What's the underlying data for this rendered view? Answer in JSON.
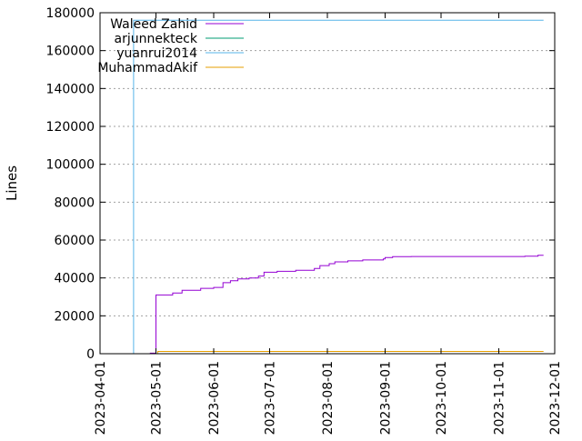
{
  "chart_data": {
    "type": "line",
    "title": "",
    "xlabel": "",
    "ylabel": "Lines",
    "xlim": [
      "2023-04-01",
      "2023-12-01"
    ],
    "ylim": [
      0,
      180000
    ],
    "y_ticks": [
      0,
      20000,
      40000,
      60000,
      80000,
      100000,
      120000,
      140000,
      160000,
      180000
    ],
    "x_ticks": [
      "2023-04-01",
      "2023-05-01",
      "2023-06-01",
      "2023-07-01",
      "2023-08-01",
      "2023-09-01",
      "2023-10-01",
      "2023-11-01",
      "2023-12-01"
    ],
    "grid": "horizontal dashed",
    "legend_position": "top-left",
    "series": [
      {
        "name": "Waleed Zahid",
        "color": "#9400d3",
        "step": true,
        "points": [
          [
            "2023-04-20",
            0
          ],
          [
            "2023-04-28",
            300
          ],
          [
            "2023-05-01",
            31000
          ],
          [
            "2023-05-10",
            32000
          ],
          [
            "2023-05-15",
            33500
          ],
          [
            "2023-05-25",
            34500
          ],
          [
            "2023-06-01",
            35000
          ],
          [
            "2023-06-05",
            35000
          ],
          [
            "2023-06-06",
            37500
          ],
          [
            "2023-06-10",
            38500
          ],
          [
            "2023-06-14",
            39500
          ],
          [
            "2023-06-20",
            40000
          ],
          [
            "2023-06-25",
            41000
          ],
          [
            "2023-06-28",
            43000
          ],
          [
            "2023-07-05",
            43500
          ],
          [
            "2023-07-15",
            44000
          ],
          [
            "2023-07-25",
            45000
          ],
          [
            "2023-07-28",
            46500
          ],
          [
            "2023-08-02",
            47500
          ],
          [
            "2023-08-05",
            48500
          ],
          [
            "2023-08-12",
            49000
          ],
          [
            "2023-08-20",
            49500
          ],
          [
            "2023-08-31",
            50000
          ],
          [
            "2023-09-01",
            50800
          ],
          [
            "2023-09-05",
            51200
          ],
          [
            "2023-09-15",
            51300
          ],
          [
            "2023-10-15",
            51300
          ],
          [
            "2023-11-05",
            51300
          ],
          [
            "2023-11-15",
            51500
          ],
          [
            "2023-11-22",
            52000
          ],
          [
            "2023-11-25",
            52000
          ]
        ]
      },
      {
        "name": "arjunnekteck",
        "color": "#009e73",
        "step": true,
        "points": [
          [
            "2023-04-20",
            0
          ],
          [
            "2023-11-25",
            0
          ]
        ]
      },
      {
        "name": "yuanrui2014",
        "color": "#56b4e9",
        "step": true,
        "points": [
          [
            "2023-04-18",
            0
          ],
          [
            "2023-04-19",
            176000
          ],
          [
            "2023-11-25",
            176000
          ]
        ]
      },
      {
        "name": "MuhammadAkif",
        "color": "#e69f00",
        "step": true,
        "points": [
          [
            "2023-05-01",
            0
          ],
          [
            "2023-05-02",
            1200
          ],
          [
            "2023-11-25",
            1200
          ]
        ]
      }
    ]
  }
}
